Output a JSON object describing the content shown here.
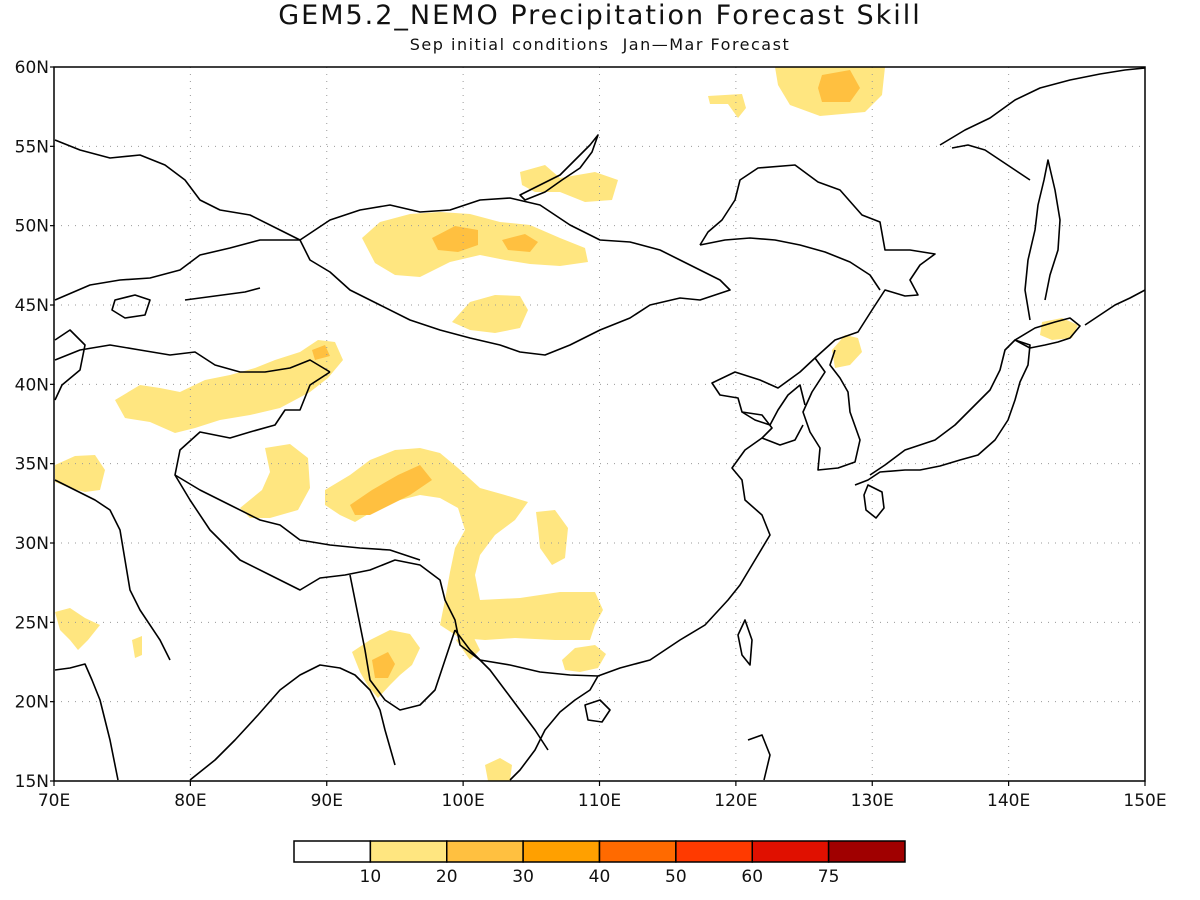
{
  "title": "GEM5.2_NEMO Precipitation Forecast Skill",
  "subtitle": "Sep initial conditions  Jan—Mar Forecast",
  "map": {
    "lon_range": [
      70,
      150
    ],
    "lat_range": [
      15,
      60
    ],
    "lon_ticks": [
      "70E",
      "80E",
      "90E",
      "100E",
      "110E",
      "120E",
      "130E",
      "140E",
      "150E"
    ],
    "lat_ticks": [
      "60N",
      "55N",
      "50N",
      "45N",
      "40N",
      "35N",
      "30N",
      "25N",
      "20N",
      "15N"
    ],
    "grid": "dotted",
    "coastline_color": "#000000"
  },
  "colorbar": {
    "colors": [
      "#ffffff",
      "#ffe680",
      "#ffc040",
      "#ffa000",
      "#ff6a00",
      "#ff3a00",
      "#e01000",
      "#a00000"
    ],
    "labels": [
      "10",
      "20",
      "30",
      "40",
      "50",
      "60",
      "75"
    ]
  },
  "skill_regions": [
    {
      "name": "n-siberia-east",
      "level": 1
    },
    {
      "name": "n-siberia-east-core",
      "level": 2
    },
    {
      "name": "baikal-small",
      "level": 1
    },
    {
      "name": "stanovoy-small",
      "level": 1
    },
    {
      "name": "mongolia-west-band",
      "level": 1
    },
    {
      "name": "mongolia-west-core1",
      "level": 2
    },
    {
      "name": "mongolia-west-core2",
      "level": 2
    },
    {
      "name": "mongolia-south",
      "level": 1
    },
    {
      "name": "kazakh-kyrgyz-band",
      "level": 1
    },
    {
      "name": "tianshan-core",
      "level": 2
    },
    {
      "name": "pakistan-band",
      "level": 1
    },
    {
      "name": "tibet-west",
      "level": 1
    },
    {
      "name": "tibet-east-band",
      "level": 1
    },
    {
      "name": "tibet-east-core",
      "level": 2
    },
    {
      "name": "sichuan-east",
      "level": 1
    },
    {
      "name": "yunnan-guangxi",
      "level": 1
    },
    {
      "name": "guangdong",
      "level": 1
    },
    {
      "name": "myanmar-west",
      "level": 1
    },
    {
      "name": "myanmar-west-core",
      "level": 2
    },
    {
      "name": "india-west",
      "level": 1
    },
    {
      "name": "india-west-small",
      "level": 1
    },
    {
      "name": "korea-north",
      "level": 1
    },
    {
      "name": "hokkaido",
      "level": 1
    },
    {
      "name": "bay-of-bengal-south",
      "level": 1
    }
  ]
}
